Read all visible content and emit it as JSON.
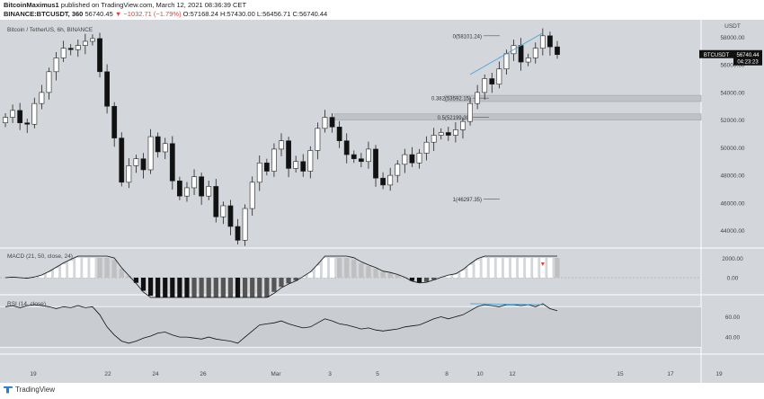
{
  "header": {
    "author": "BitcoinMaximus1",
    "published": "published on TradingView.com, March 12, 2021 08:36:39 CET",
    "symbol_line_prefix": "BINANCE:BTCUSDT, 360",
    "last": "56740.45",
    "change": "▼ −1032.71 (−1.79%)",
    "ohlc": "O:57168.24 H:57430.00 L:56456.71 C:56740.44"
  },
  "chart_data": [
    {
      "type": "candlestick",
      "title": "Bitcoin / TetherUS, 6h, BINANCE",
      "y_unit": "USDT",
      "y_ticks": [
        44000,
        46000,
        48000,
        50000,
        52000,
        54000,
        56000,
        58000
      ],
      "x_ticks": [
        "19",
        "22",
        "24",
        "26",
        "Mar",
        "3",
        "5",
        "8",
        "10",
        "12",
        "15",
        "17",
        "19"
      ],
      "last_price_label": "BTCUSDT",
      "last_price": "56740.44",
      "countdown": "04:23:23",
      "fib_levels": [
        {
          "label": "0(58101.24)",
          "value": 58101.24
        },
        {
          "label": "0.382(53592.15)",
          "value": 53592.15
        },
        {
          "label": "0.5(52199.30)",
          "value": 52199.3
        },
        {
          "label": "1(46297.35)",
          "value": 46297.35
        }
      ],
      "close_values": [
        52200,
        52700,
        51800,
        51700,
        53200,
        54000,
        55500,
        56500,
        57200,
        57100,
        57400,
        57700,
        57900,
        55500,
        53000,
        50700,
        47500,
        48700,
        49200,
        48400,
        50800,
        49700,
        50300,
        47600,
        46500,
        47100,
        47900,
        46500,
        47200,
        45000,
        45800,
        44300,
        43300,
        45600,
        47500,
        48900,
        48300,
        49900,
        50500,
        48500,
        49000,
        48300,
        49800,
        51400,
        52200,
        51500,
        50500,
        49500,
        49200,
        49000,
        49900,
        47800,
        47300,
        48000,
        48800,
        49500,
        48900,
        49600,
        50400,
        50900,
        51100,
        50900,
        51300,
        51900,
        53200,
        54000,
        55000,
        54600,
        55700,
        56800,
        57400,
        56200,
        56500,
        57200,
        58100,
        57300,
        56740
      ]
    },
    {
      "type": "macd",
      "title": "MACD (21, 50, close, 24)",
      "y_ticks": [
        2000,
        0
      ]
    },
    {
      "type": "rsi",
      "title": "RSI (14, close)",
      "y_ticks": [
        60,
        40
      ],
      "rsi_values": [
        70,
        71,
        69,
        71,
        72,
        71,
        70,
        68,
        70,
        69,
        71,
        69,
        70,
        62,
        50,
        42,
        36,
        34,
        36,
        39,
        41,
        44,
        45,
        42,
        40,
        40,
        39,
        38,
        40,
        38,
        37,
        36,
        34,
        40,
        46,
        52,
        53,
        54,
        56,
        53,
        51,
        49,
        50,
        54,
        58,
        56,
        53,
        52,
        50,
        48,
        49,
        47,
        46,
        47,
        48,
        50,
        51,
        52,
        55,
        58,
        60,
        58,
        60,
        62,
        66,
        70,
        72,
        71,
        70,
        72,
        72,
        71,
        72,
        70,
        73,
        68,
        66
      ]
    }
  ],
  "footer": {
    "brand": "TradingView"
  }
}
